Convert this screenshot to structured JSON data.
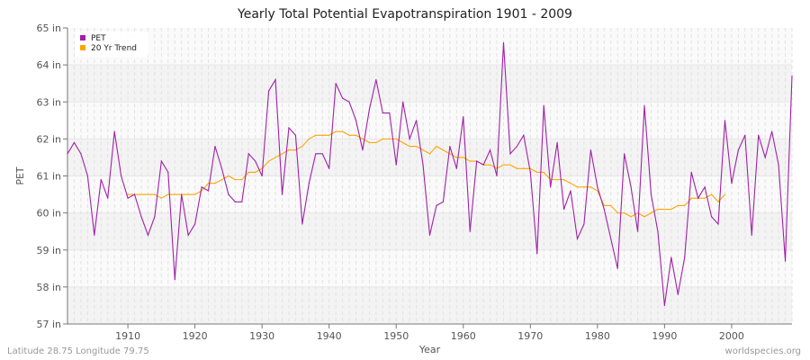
{
  "title": "Yearly Total Potential Evapotranspiration 1901 - 2009",
  "footer": {
    "location": "Latitude 28.75 Longitude 79.75",
    "site": "worldspecies.org"
  },
  "chart_data": {
    "type": "line",
    "title": "Yearly Total Potential Evapotranspiration 1901 - 2009",
    "xlabel": "Year",
    "ylabel": "PET",
    "xlim": [
      1901,
      2009
    ],
    "ylim": [
      57,
      65
    ],
    "x_ticks": [
      1910,
      1920,
      1930,
      1940,
      1950,
      1960,
      1970,
      1980,
      1990,
      2000
    ],
    "y_ticks": [
      "57 in",
      "58 in",
      "59 in",
      "60 in",
      "61 in",
      "62 in",
      "63 in",
      "64 in",
      "65 in"
    ],
    "grid": true,
    "legend_placement": "top-left",
    "series": [
      {
        "name": "PET",
        "color": "#a020a8",
        "x_start": 1901,
        "values": [
          61.6,
          61.9,
          61.6,
          61.0,
          59.4,
          60.9,
          60.4,
          62.2,
          61.0,
          60.4,
          60.5,
          59.9,
          59.4,
          59.9,
          61.4,
          61.1,
          58.2,
          60.5,
          59.4,
          59.7,
          60.7,
          60.6,
          61.8,
          61.2,
          60.5,
          60.3,
          60.3,
          61.6,
          61.4,
          61.0,
          63.3,
          63.6,
          60.5,
          62.3,
          62.1,
          59.7,
          60.8,
          61.6,
          61.6,
          61.2,
          63.5,
          63.1,
          63.0,
          62.5,
          61.7,
          62.8,
          63.6,
          62.7,
          62.7,
          61.3,
          63.0,
          62.0,
          62.5,
          61.3,
          59.4,
          60.2,
          60.3,
          61.8,
          61.2,
          62.6,
          59.5,
          61.4,
          61.3,
          61.7,
          61.0,
          64.6,
          61.6,
          61.8,
          62.1,
          61.1,
          58.9,
          62.9,
          60.7,
          61.9,
          60.1,
          60.6,
          59.3,
          59.7,
          61.7,
          60.7,
          60.1,
          59.3,
          58.5,
          61.6,
          60.7,
          59.5,
          62.9,
          60.5,
          59.5,
          57.5,
          58.8,
          57.8,
          58.8,
          61.1,
          60.4,
          60.7,
          59.9,
          59.7,
          62.5,
          60.8,
          61.7,
          62.1,
          59.4,
          62.1,
          61.5,
          62.2,
          61.3,
          58.7,
          63.7
        ]
      },
      {
        "name": "20 Yr Trend",
        "color": "#ffa500",
        "x_start": 1910,
        "values": [
          60.5,
          60.5,
          60.5,
          60.5,
          60.5,
          60.4,
          60.5,
          60.5,
          60.5,
          60.5,
          60.5,
          60.6,
          60.8,
          60.8,
          60.9,
          61.0,
          60.9,
          60.9,
          61.1,
          61.1,
          61.2,
          61.4,
          61.5,
          61.6,
          61.7,
          61.7,
          61.8,
          62.0,
          62.1,
          62.1,
          62.1,
          62.2,
          62.2,
          62.1,
          62.1,
          62.0,
          61.9,
          61.9,
          62.0,
          62.0,
          62.0,
          61.9,
          61.8,
          61.8,
          61.7,
          61.6,
          61.8,
          61.7,
          61.6,
          61.5,
          61.5,
          61.4,
          61.4,
          61.3,
          61.3,
          61.2,
          61.3,
          61.3,
          61.2,
          61.2,
          61.2,
          61.1,
          61.1,
          60.9,
          60.9,
          60.9,
          60.8,
          60.7,
          60.7,
          60.7,
          60.6,
          60.2,
          60.2,
          60.0,
          60.0,
          59.9,
          60.0,
          59.9,
          60.0,
          60.1,
          60.1,
          60.1,
          60.2,
          60.2,
          60.4,
          60.4,
          60.4,
          60.5,
          60.3,
          60.5
        ]
      }
    ]
  }
}
